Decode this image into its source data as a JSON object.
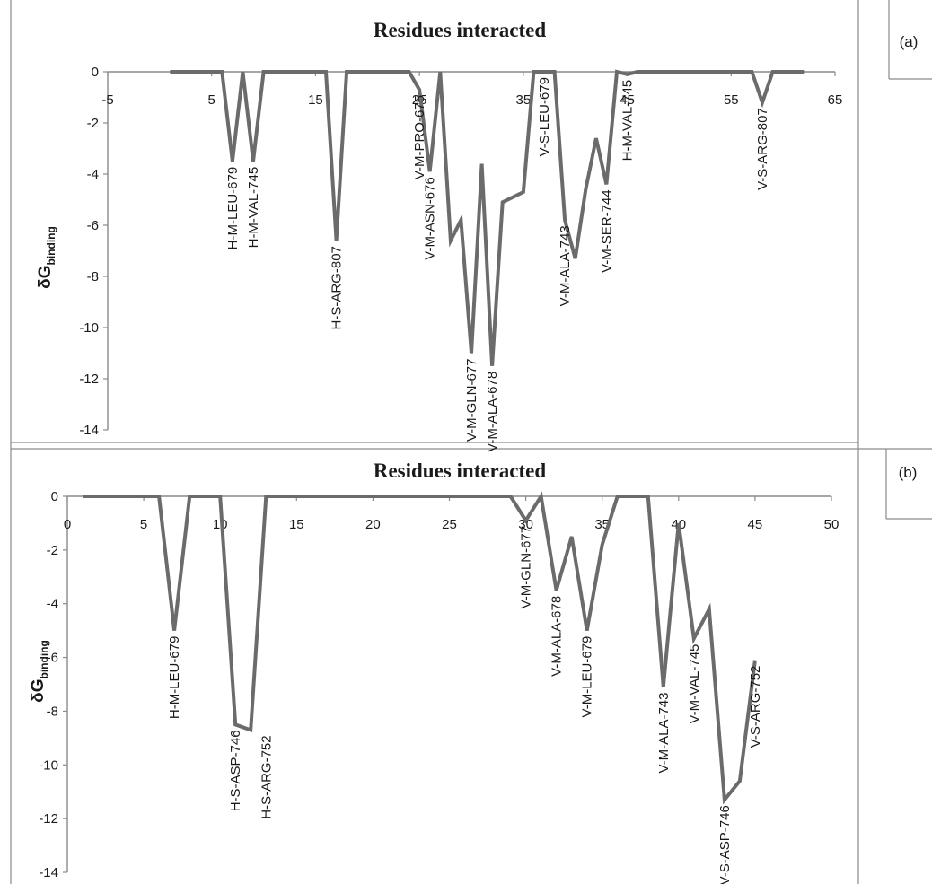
{
  "chart_data": [
    {
      "panel_label": "(a)",
      "type": "line",
      "title": "Residues interacted",
      "ylabel": "δG",
      "ylabel_sub": "binding",
      "xlim": [
        -5,
        65
      ],
      "ylim": [
        -14,
        0
      ],
      "xticks": [
        "-5",
        "5",
        "15",
        "25",
        "35",
        "45",
        "55",
        "65"
      ],
      "yticks": [
        "0",
        "-2",
        "-4",
        "-6",
        "-8",
        "-10",
        "-12",
        "-14"
      ],
      "grid": false,
      "series": [
        {
          "color": "#6b6b6b",
          "points": [
            [
              1,
              0
            ],
            [
              2,
              0
            ],
            [
              3,
              0
            ],
            [
              4,
              0
            ],
            [
              5,
              0
            ],
            [
              6,
              0
            ],
            [
              7,
              -3.5
            ],
            [
              8,
              0
            ],
            [
              9,
              -3.5
            ],
            [
              10,
              0
            ],
            [
              11,
              0
            ],
            [
              12,
              0
            ],
            [
              13,
              0
            ],
            [
              14,
              0
            ],
            [
              15,
              0
            ],
            [
              16,
              0
            ],
            [
              17,
              -6.6
            ],
            [
              18,
              0
            ],
            [
              19,
              0
            ],
            [
              20,
              0
            ],
            [
              21,
              0
            ],
            [
              22,
              0
            ],
            [
              23,
              0
            ],
            [
              24,
              0
            ],
            [
              25,
              -0.7
            ],
            [
              26,
              -3.9
            ],
            [
              27,
              0
            ],
            [
              28,
              -6.6
            ],
            [
              29,
              -5.8
            ],
            [
              30,
              -11
            ],
            [
              31,
              -3.6
            ],
            [
              32,
              -11.5
            ],
            [
              33,
              -5.1
            ],
            [
              34,
              -4.9
            ],
            [
              35,
              -4.7
            ],
            [
              36,
              0
            ],
            [
              37,
              0
            ],
            [
              38,
              0
            ],
            [
              39,
              -5.8
            ],
            [
              40,
              -7.3
            ],
            [
              41,
              -4.6
            ],
            [
              42,
              -2.6
            ],
            [
              43,
              -4.4
            ],
            [
              44,
              0
            ],
            [
              45,
              -0.1
            ],
            [
              46,
              0
            ],
            [
              47,
              0
            ],
            [
              48,
              0
            ],
            [
              49,
              0
            ],
            [
              50,
              0
            ],
            [
              51,
              0
            ],
            [
              52,
              0
            ],
            [
              53,
              0
            ],
            [
              54,
              0
            ],
            [
              55,
              0
            ],
            [
              56,
              0
            ],
            [
              57,
              0
            ],
            [
              58,
              -1.2
            ],
            [
              59,
              0
            ],
            [
              60,
              0
            ],
            [
              61,
              0
            ],
            [
              62,
              0
            ]
          ]
        }
      ],
      "annotations": [
        {
          "text": "H-M-LEU-679",
          "x": 7,
          "y": -3.5
        },
        {
          "text": "H-M-VAL-745",
          "x": 9,
          "y": -3.5
        },
        {
          "text": "H-S-ARG-807",
          "x": 17,
          "y": -6.6
        },
        {
          "text": "V-M-PRO-675",
          "x": 25,
          "y": -0.7
        },
        {
          "text": "V-M-ASN-676",
          "x": 26,
          "y": -3.9
        },
        {
          "text": "V-M-GLN-677",
          "x": 30,
          "y": -11
        },
        {
          "text": "V-M-ALA-678",
          "x": 32,
          "y": -11.5
        },
        {
          "text": "V-S-LEU-679",
          "x": 37,
          "y": 0
        },
        {
          "text": "V-M-ALA-743",
          "x": 39,
          "y": -5.8
        },
        {
          "text": "V-M-SER-744",
          "x": 43,
          "y": -4.4
        },
        {
          "text": "H-M-VAL-745",
          "x": 45,
          "y": -0.1
        },
        {
          "text": "V-S-ARG-807",
          "x": 58,
          "y": -1.2
        }
      ]
    },
    {
      "panel_label": "(b)",
      "type": "line",
      "title": "Residues interacted",
      "ylabel": "δG",
      "ylabel_sub": "binding",
      "xlim": [
        0,
        50
      ],
      "ylim": [
        -14,
        0
      ],
      "xticks": [
        "0",
        "5",
        "10",
        "15",
        "20",
        "25",
        "30",
        "35",
        "40",
        "45",
        "50"
      ],
      "yticks": [
        "0",
        "-2",
        "-4",
        "-6",
        "-8",
        "-10",
        "-12",
        "-14"
      ],
      "grid": false,
      "series": [
        {
          "color": "#6b6b6b",
          "points": [
            [
              1,
              0
            ],
            [
              2,
              0
            ],
            [
              3,
              0
            ],
            [
              4,
              0
            ],
            [
              5,
              0
            ],
            [
              6,
              0
            ],
            [
              7,
              -5
            ],
            [
              8,
              0
            ],
            [
              9,
              0
            ],
            [
              10,
              0
            ],
            [
              11,
              -8.5
            ],
            [
              12,
              -8.7
            ],
            [
              13,
              0
            ],
            [
              14,
              0
            ],
            [
              15,
              0
            ],
            [
              16,
              0
            ],
            [
              17,
              0
            ],
            [
              18,
              0
            ],
            [
              19,
              0
            ],
            [
              20,
              0
            ],
            [
              21,
              0
            ],
            [
              22,
              0
            ],
            [
              23,
              0
            ],
            [
              24,
              0
            ],
            [
              25,
              0
            ],
            [
              26,
              0
            ],
            [
              27,
              0
            ],
            [
              28,
              0
            ],
            [
              29,
              0
            ],
            [
              30,
              -0.9
            ],
            [
              31,
              0
            ],
            [
              32,
              -3.5
            ],
            [
              33,
              -1.5
            ],
            [
              34,
              -5
            ],
            [
              35,
              -1.8
            ],
            [
              36,
              0
            ],
            [
              37,
              0
            ],
            [
              38,
              0
            ],
            [
              39,
              -7.1
            ],
            [
              40,
              -1
            ],
            [
              41,
              -5.3
            ],
            [
              42,
              -4.2
            ],
            [
              43,
              -11.3
            ],
            [
              44,
              -10.6
            ],
            [
              45,
              -6.1
            ]
          ]
        }
      ],
      "annotations": [
        {
          "text": "H-M-LEU-679",
          "x": 7,
          "y": -5
        },
        {
          "text": "H-S-ASP-746",
          "x": 11,
          "y": -8.5
        },
        {
          "text": "H-S-ARG-752",
          "x": 13,
          "y": -8.7
        },
        {
          "text": "V-M-GLN-677",
          "x": 30,
          "y": -0.9
        },
        {
          "text": "V-M-ALA-678",
          "x": 32,
          "y": -3.5
        },
        {
          "text": "V-M-LEU-679",
          "x": 34,
          "y": -5
        },
        {
          "text": "V-M-ALA-743",
          "x": 39,
          "y": -7.1
        },
        {
          "text": "V-M-VAL-745",
          "x": 41,
          "y": -5.3
        },
        {
          "text": "V-S-ASP-746",
          "x": 43,
          "y": -11.3
        },
        {
          "text": "V-S-ARG-752",
          "x": 45,
          "y": -6.1
        }
      ]
    }
  ]
}
